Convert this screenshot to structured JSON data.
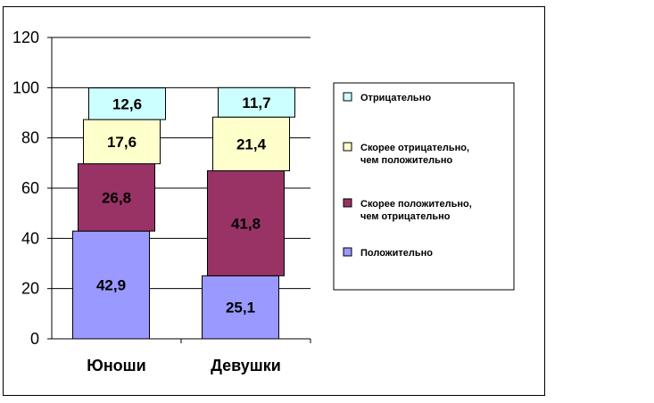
{
  "chart_data": {
    "type": "bar",
    "stacked": true,
    "categories": [
      "Юноши",
      "Девушки"
    ],
    "series": [
      {
        "name": "Положительно",
        "values": [
          42.9,
          25.1
        ],
        "labels": [
          "42,9",
          "25,1"
        ],
        "color": "#9999ff"
      },
      {
        "name": "Скорее положительно, чем отрицательно",
        "values": [
          26.8,
          41.8
        ],
        "labels": [
          "26,8",
          "41,8"
        ],
        "color": "#993366"
      },
      {
        "name": "Скорее отрицательно, чем положительно",
        "values": [
          17.6,
          21.4
        ],
        "labels": [
          "17,6",
          "21,4"
        ],
        "color": "#ffffcc"
      },
      {
        "name": "Отрицательно",
        "values": [
          12.6,
          11.7
        ],
        "labels": [
          "12,6",
          "11,7"
        ],
        "color": "#ccffff"
      }
    ],
    "legend_order": [
      3,
      2,
      1,
      0
    ],
    "ylim": [
      0,
      120
    ],
    "yticks": [
      0,
      20,
      40,
      60,
      80,
      100,
      120
    ],
    "grid": true,
    "legend_position": "right",
    "title": "",
    "xlabel": "",
    "ylabel": ""
  }
}
